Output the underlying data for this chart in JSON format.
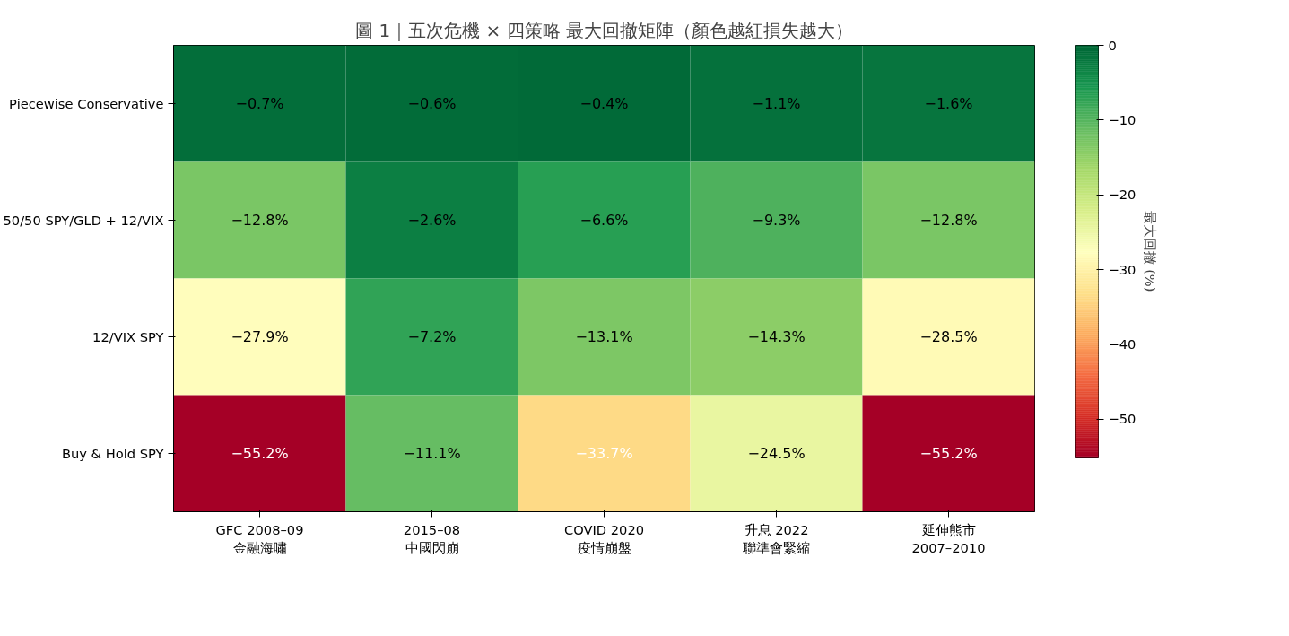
{
  "chart_data": {
    "type": "heatmap",
    "title": "圖 1｜五次危機 × 四策略 最大回撤矩陣（顏色越紅損失越大）",
    "categories": [
      "GFC 2008–09\n金融海嘯",
      "2015–08\n中國閃崩",
      "COVID 2020\n疫情崩盤",
      "升息 2022\n聯準會緊縮",
      "延伸熊市\n2007–2010"
    ],
    "y_categories": [
      "Piecewise Conservative",
      "50/50 SPY/GLD + 12/VIX",
      "12/VIX SPY",
      "Buy & Hold SPY"
    ],
    "cells": [
      [
        -0.7,
        -0.6,
        -0.4,
        -1.1,
        -1.6
      ],
      [
        -12.8,
        -2.6,
        -6.6,
        -9.3,
        -12.8
      ],
      [
        -27.9,
        -7.2,
        -13.1,
        -14.3,
        -28.5
      ],
      [
        -55.2,
        -11.1,
        -33.7,
        -24.5,
        -55.2
      ]
    ],
    "cell_labels": [
      [
        "−0.7%",
        "−0.6%",
        "−0.4%",
        "−1.1%",
        "−1.6%"
      ],
      [
        "−12.8%",
        "−2.6%",
        "−6.6%",
        "−9.3%",
        "−12.8%"
      ],
      [
        "−27.9%",
        "−7.2%",
        "−13.1%",
        "−14.3%",
        "−28.5%"
      ],
      [
        "−55.2%",
        "−11.1%",
        "−33.7%",
        "−24.5%",
        "−55.2%"
      ]
    ],
    "clabel": "最大回撤 (%)",
    "clim": [
      -55.2,
      0
    ],
    "cticks": [
      {
        "value": 0,
        "label": "0"
      },
      {
        "value": -10,
        "label": "−10"
      },
      {
        "value": -20,
        "label": "−20"
      },
      {
        "value": -30,
        "label": "−30"
      },
      {
        "value": -40,
        "label": "−40"
      },
      {
        "value": -50,
        "label": "−50"
      }
    ]
  }
}
